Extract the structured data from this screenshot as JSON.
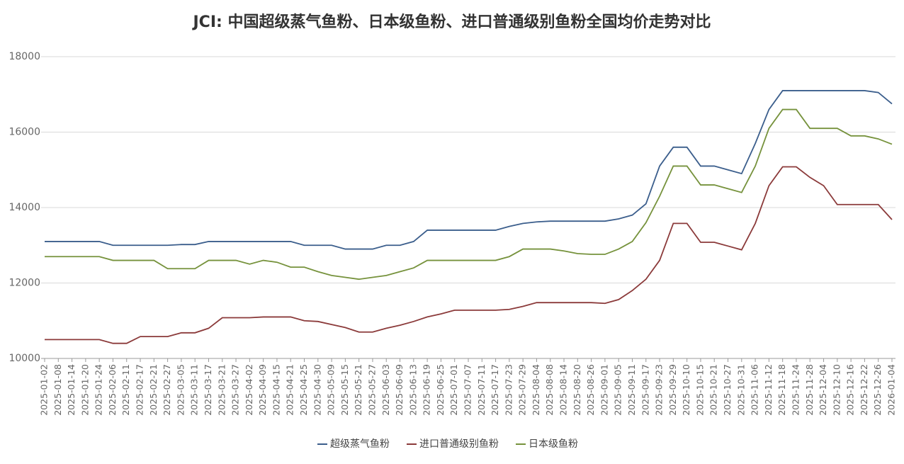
{
  "chart_data": {
    "type": "line",
    "title": "JCI: 中国超级蒸气鱼粉、日本级鱼粉、进口普通级别鱼粉全国均价走势对比",
    "categories": [
      "2025-01-02",
      "2025-01-08",
      "2025-01-14",
      "2025-01-20",
      "2025-01-24",
      "2025-02-06",
      "2025-02-11",
      "2025-02-17",
      "2025-02-21",
      "2025-02-27",
      "2025-03-05",
      "2025-03-11",
      "2025-03-17",
      "2025-03-21",
      "2025-03-27",
      "2025-04-02",
      "2025-04-09",
      "2025-04-15",
      "2025-04-21",
      "2025-04-25",
      "2025-04-30",
      "2025-05-09",
      "2025-05-15",
      "2025-05-21",
      "2025-05-27",
      "2025-06-03",
      "2025-06-09",
      "2025-06-13",
      "2025-06-19",
      "2025-06-25",
      "2025-07-01",
      "2025-07-07",
      "2025-07-11",
      "2025-07-17",
      "2025-07-23",
      "2025-07-29",
      "2025-08-04",
      "2025-08-08",
      "2025-08-14",
      "2025-08-20",
      "2025-08-26",
      "2025-09-01",
      "2025-09-05",
      "2025-09-11",
      "2025-09-17",
      "2025-09-23",
      "2025-09-29",
      "2025-10-10",
      "2025-10-15",
      "2025-10-21",
      "2025-10-27",
      "2025-10-31",
      "2025-11-06",
      "2025-11-12",
      "2025-11-18",
      "2025-11-24",
      "2025-11-28",
      "2025-12-04",
      "2025-12-10",
      "2025-12-16",
      "2025-12-22",
      "2025-12-26",
      "2026-01-04"
    ],
    "series": [
      {
        "name": "超级蒸气鱼粉",
        "color": "#3b5e8c",
        "values": [
          13100,
          13100,
          13100,
          13100,
          13100,
          13000,
          13000,
          13000,
          13000,
          13000,
          13020,
          13020,
          13100,
          13100,
          13100,
          13100,
          13100,
          13100,
          13100,
          13000,
          13000,
          13000,
          12900,
          12900,
          12900,
          13000,
          13000,
          13100,
          13400,
          13400,
          13400,
          13400,
          13400,
          13400,
          13500,
          13580,
          13620,
          13640,
          13640,
          13640,
          13640,
          13640,
          13700,
          13800,
          14100,
          15100,
          15600,
          15600,
          15100,
          15100,
          15000,
          14900,
          15700,
          16600,
          17100,
          17100,
          17100,
          17100,
          17100,
          17100,
          17100,
          17050,
          16750
        ]
      },
      {
        "name": "进口普通级别鱼粉",
        "color": "#8b3a3a",
        "values": [
          10500,
          10500,
          10500,
          10500,
          10500,
          10400,
          10400,
          10580,
          10580,
          10580,
          10680,
          10680,
          10800,
          11080,
          11080,
          11080,
          11100,
          11100,
          11100,
          11000,
          10980,
          10900,
          10820,
          10700,
          10700,
          10800,
          10880,
          10980,
          11100,
          11180,
          11280,
          11280,
          11280,
          11280,
          11300,
          11380,
          11480,
          11480,
          11480,
          11480,
          11480,
          11460,
          11560,
          11800,
          12100,
          12600,
          13580,
          13580,
          13080,
          13080,
          12980,
          12880,
          13580,
          14580,
          15080,
          15080,
          14800,
          14580,
          14080,
          14080,
          14080,
          14080,
          13680
        ]
      },
      {
        "name": "日本级鱼粉",
        "color": "#76923c",
        "values": [
          12700,
          12700,
          12700,
          12700,
          12700,
          12600,
          12600,
          12600,
          12600,
          12380,
          12380,
          12380,
          12600,
          12600,
          12600,
          12500,
          12600,
          12550,
          12420,
          12420,
          12300,
          12200,
          12150,
          12100,
          12150,
          12200,
          12300,
          12400,
          12600,
          12600,
          12600,
          12600,
          12600,
          12600,
          12700,
          12900,
          12900,
          12900,
          12850,
          12780,
          12760,
          12760,
          12900,
          13100,
          13600,
          14300,
          15100,
          15100,
          14600,
          14600,
          14500,
          14400,
          15100,
          16100,
          16600,
          16600,
          16100,
          16100,
          16100,
          15900,
          15900,
          15820,
          15680
        ]
      }
    ],
    "ylim": [
      10000,
      18000
    ],
    "yticks": [
      10000,
      12000,
      14000,
      16000,
      18000
    ],
    "grid": true,
    "legend": "bottom"
  }
}
